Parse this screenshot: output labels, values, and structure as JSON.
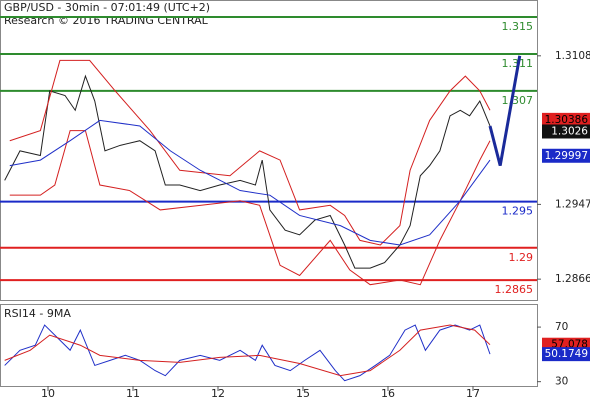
{
  "chart_data": [
    {
      "type": "line",
      "title": "GBP/USD - 30min - 07:01:49 (UTC+2)",
      "subtitle": "Research © 2016 TRADING CENTRAL",
      "xlim": [
        0.435,
        6.753
      ],
      "ylim": [
        1.28434,
        1.31674
      ],
      "yticks": [
        1.3108,
        1.2947,
        1.2866
      ],
      "series": [
        {
          "color": "#222222",
          "width": 1,
          "x": [
            0.49,
            0.67,
            0.91,
            1.02,
            1.2,
            1.32,
            1.44,
            1.55,
            1.67,
            1.85,
            2.08,
            2.26,
            2.38,
            2.55,
            2.79,
            3.02,
            3.26,
            3.44,
            3.52,
            3.61,
            3.79,
            3.96,
            4.14,
            4.32,
            4.49,
            4.61,
            4.79,
            4.96,
            5.14,
            5.26,
            5.38,
            5.49,
            5.61,
            5.73,
            5.85,
            5.96,
            6.08,
            6.2
          ],
          "values": [
            1.2973,
            1.3005,
            1.3,
            1.307,
            1.3065,
            1.3049,
            1.3086,
            1.3059,
            1.3005,
            1.3011,
            1.3016,
            1.3005,
            1.2968,
            1.2968,
            1.2962,
            1.2968,
            1.2973,
            1.2968,
            1.2995,
            1.2941,
            1.2919,
            1.2914,
            1.293,
            1.2935,
            1.2903,
            1.2878,
            1.2878,
            1.2884,
            1.2903,
            1.2924,
            1.2978,
            1.2989,
            1.3005,
            1.3043,
            1.3049,
            1.3043,
            1.3059,
            1.3032
          ]
        },
        {
          "color": "#d42020",
          "width": 1,
          "x": [
            0.55,
            0.91,
            1.14,
            1.49,
            1.79,
            2.2,
            2.55,
            3.14,
            3.49,
            3.73,
            3.96,
            4.32,
            4.49,
            4.67,
            4.91,
            5.14,
            5.26,
            5.49,
            5.73,
            5.91,
            6.08,
            6.2
          ],
          "values": [
            1.3016,
            1.3027,
            1.3103,
            1.3103,
            1.307,
            1.3027,
            1.2984,
            1.2978,
            1.3005,
            1.2995,
            1.2941,
            1.2946,
            1.2935,
            1.2908,
            1.2903,
            1.2924,
            1.2984,
            1.3038,
            1.307,
            1.3086,
            1.307,
            1.3049
          ]
        },
        {
          "color": "#d42020",
          "width": 1,
          "x": [
            0.55,
            0.91,
            1.08,
            1.26,
            1.44,
            1.61,
            1.96,
            2.32,
            2.79,
            3.26,
            3.49,
            3.73,
            3.96,
            4.32,
            4.55,
            4.79,
            5.14,
            5.38,
            5.61,
            5.85,
            6.08,
            6.2
          ],
          "values": [
            1.2957,
            1.2957,
            1.2968,
            1.3027,
            1.3027,
            1.2968,
            1.2962,
            1.2941,
            1.2946,
            1.2951,
            1.2946,
            1.2881,
            1.287,
            1.2908,
            1.2876,
            1.286,
            1.2865,
            1.286,
            1.2908,
            1.2951,
            1.2995,
            1.3016
          ]
        },
        {
          "color": "#2030c8",
          "width": 1,
          "x": [
            0.55,
            0.91,
            1.26,
            1.61,
            2.08,
            2.44,
            2.79,
            3.26,
            3.61,
            3.96,
            4.44,
            4.79,
            5.14,
            5.49,
            5.85,
            6.2
          ],
          "values": [
            1.2989,
            1.2995,
            1.3016,
            1.3038,
            1.3032,
            1.3005,
            1.2984,
            1.2962,
            1.2957,
            1.2935,
            1.2924,
            1.2908,
            1.2903,
            1.2914,
            1.2951,
            1.2995
          ]
        },
        {
          "color": "#1a2a9a",
          "width": 3,
          "x": [
            6.2,
            6.32,
            6.55
          ],
          "values": [
            1.3032,
            1.2989,
            1.3108
          ]
        }
      ],
      "levels": [
        {
          "value": 1.315,
          "color": "#2e8b2e"
        },
        {
          "value": 1.311,
          "color": "#2e8b2e"
        },
        {
          "value": 1.307,
          "color": "#2e8b2e"
        },
        {
          "value": 1.295,
          "color": "#1a2ac8"
        },
        {
          "value": 1.29,
          "color": "#e02020"
        },
        {
          "value": 1.2865,
          "color": "#e02020"
        }
      ],
      "markers": [
        {
          "value": 1.30386,
          "color": "#e02020",
          "text_color": "#000000"
        },
        {
          "value": 1.3026,
          "color": "#111111",
          "text_color": "#ffffff"
        },
        {
          "value": 1.29997,
          "color": "#1a2ac8",
          "text_color": "#ffffff"
        }
      ]
    },
    {
      "type": "line",
      "title": "RSI14 - 9MA",
      "xlim": [
        0.435,
        6.753
      ],
      "ylim": [
        20,
        84
      ],
      "yticks": [
        70,
        30
      ],
      "xticks": [
        {
          "value": 1,
          "label": "10"
        },
        {
          "value": 2,
          "label": "11"
        },
        {
          "value": 3,
          "label": "12"
        },
        {
          "value": 4,
          "label": "15"
        },
        {
          "value": 5,
          "label": "16"
        },
        {
          "value": 6,
          "label": "17"
        }
      ],
      "series": [
        {
          "color": "#2030c8",
          "width": 1,
          "x": [
            0.49,
            0.67,
            0.85,
            0.96,
            1.08,
            1.26,
            1.38,
            1.55,
            1.73,
            1.91,
            2.08,
            2.26,
            2.38,
            2.55,
            2.79,
            3.02,
            3.26,
            3.44,
            3.52,
            3.67,
            3.85,
            4.02,
            4.2,
            4.38,
            4.49,
            4.67,
            4.85,
            5.02,
            5.2,
            5.32,
            5.44,
            5.61,
            5.79,
            5.96,
            6.08,
            6.2
          ],
          "values": [
            41.9,
            53,
            56.7,
            71.5,
            64.1,
            53,
            67.8,
            41.9,
            45.6,
            49.3,
            45.6,
            38.1,
            34.4,
            45.6,
            49.3,
            45.6,
            53,
            45.6,
            56.7,
            41.9,
            38.1,
            45.6,
            53,
            38.1,
            30.7,
            34.4,
            41.9,
            49.3,
            67.8,
            71.5,
            53,
            67.8,
            71.5,
            67.8,
            71.5,
            50.2
          ]
        },
        {
          "color": "#d42020",
          "width": 1,
          "x": [
            0.49,
            0.79,
            1.02,
            1.38,
            1.61,
            2.08,
            2.55,
            3.02,
            3.49,
            3.96,
            4.44,
            4.79,
            5.14,
            5.38,
            5.73,
            6.02,
            6.2
          ],
          "values": [
            45.6,
            53,
            64.1,
            56.7,
            49.3,
            45.6,
            44.1,
            47.8,
            49.3,
            43.3,
            34.4,
            38.1,
            53,
            67.8,
            71.5,
            67.8,
            57.1
          ]
        }
      ],
      "markers": [
        {
          "value": 57.078,
          "color": "#e02020",
          "text_color": "#000000"
        },
        {
          "value": 50.1749,
          "color": "#1a2ac8",
          "text_color": "#ffffff"
        }
      ]
    }
  ]
}
